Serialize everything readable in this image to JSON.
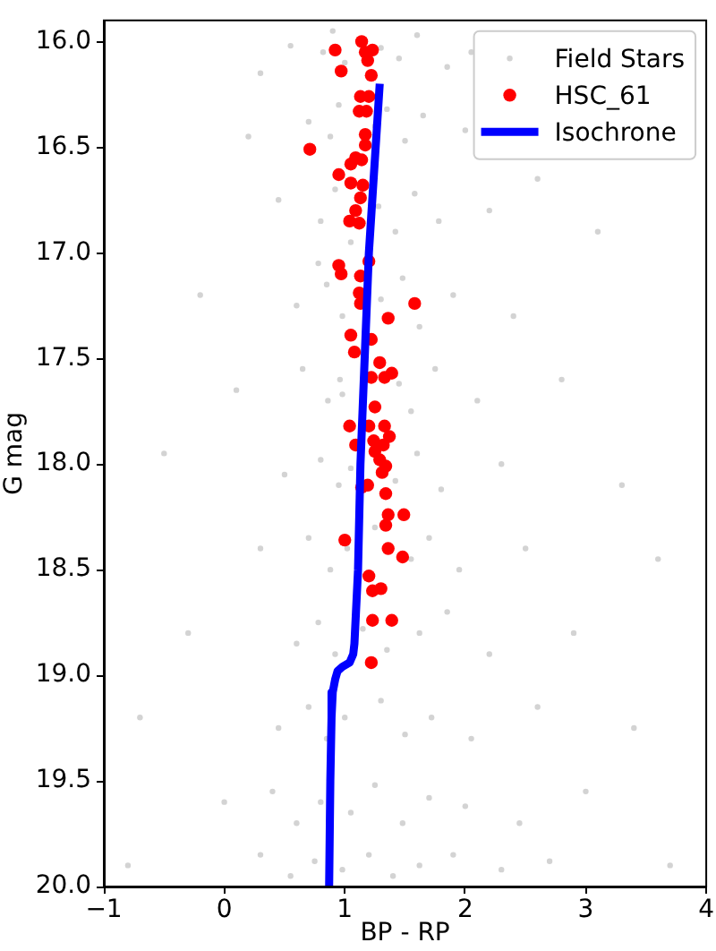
{
  "chart_data": {
    "type": "scatter",
    "xlabel": "BP - RP",
    "ylabel": "G mag",
    "xlim": [
      -1,
      4
    ],
    "ylim": [
      20.0,
      15.9
    ],
    "xticks": [
      {
        "value": -1,
        "label": "−1"
      },
      0,
      1,
      2,
      3,
      4
    ],
    "yticks": [
      {
        "value": 16,
        "label": "16.0"
      },
      16.5,
      {
        "value": 17,
        "label": "17.0"
      },
      17.5,
      {
        "value": 18,
        "label": "18.0"
      },
      18.5,
      {
        "value": 19,
        "label": "19.0"
      },
      19.5,
      {
        "value": 20,
        "label": "20.0"
      }
    ],
    "grid": false,
    "legend": "top right",
    "marker": "circle",
    "series": [
      {
        "name": "Field Stars",
        "color": "#d3d3d3",
        "x": [
          0.55,
          0.82,
          0.9,
          1.0,
          1.3,
          1.45,
          1.6,
          1.85,
          2.05,
          0.3,
          0.7,
          0.88,
          0.95,
          1.25,
          1.35,
          1.5,
          1.65,
          2.0,
          2.6,
          0.2,
          0.45,
          0.8,
          0.92,
          1.05,
          1.28,
          1.42,
          1.58,
          1.78,
          2.2,
          3.1,
          -0.2,
          0.6,
          0.85,
          0.98,
          1.3,
          1.48,
          1.62,
          1.9,
          2.4,
          0.78,
          0.1,
          0.65,
          0.86,
          0.96,
          0.98,
          1.45,
          1.55,
          1.75,
          2.1,
          2.8,
          -0.5,
          0.5,
          0.8,
          0.95,
          1.05,
          1.42,
          1.6,
          1.8,
          2.3,
          3.3,
          0.3,
          0.7,
          0.88,
          1.02,
          1.25,
          1.55,
          1.7,
          1.95,
          2.5,
          3.6,
          -0.3,
          0.6,
          0.78,
          0.92,
          1.15,
          1.35,
          1.62,
          1.85,
          2.2,
          2.9,
          -0.7,
          0.45,
          0.7,
          0.85,
          1.0,
          1.3,
          1.5,
          1.72,
          2.05,
          2.6,
          3.4,
          0.0,
          0.4,
          0.6,
          0.8,
          1.05,
          1.25,
          1.48,
          1.7,
          2.0,
          2.45,
          3.0,
          -0.8,
          0.3,
          0.55,
          0.75,
          0.98,
          1.2,
          1.4,
          1.62,
          1.9,
          2.3,
          2.7,
          3.7
        ],
        "values": [
          16.02,
          16.05,
          15.95,
          16.1,
          16.03,
          16.08,
          15.97,
          16.12,
          16.05,
          16.15,
          16.38,
          16.45,
          16.3,
          16.4,
          16.32,
          16.47,
          16.35,
          16.42,
          16.65,
          16.45,
          16.75,
          16.85,
          16.7,
          16.95,
          16.78,
          16.9,
          16.72,
          16.85,
          16.8,
          16.9,
          17.2,
          17.25,
          17.15,
          17.3,
          17.22,
          17.12,
          17.35,
          17.2,
          17.3,
          17.05,
          17.65,
          17.55,
          17.7,
          17.6,
          17.67,
          17.62,
          17.75,
          17.55,
          17.7,
          17.6,
          17.95,
          18.05,
          17.98,
          18.1,
          18.02,
          18.08,
          17.95,
          18.12,
          18.0,
          18.1,
          18.4,
          18.35,
          18.5,
          18.4,
          18.3,
          18.45,
          18.35,
          18.5,
          18.4,
          18.45,
          18.8,
          18.85,
          18.75,
          18.9,
          18.78,
          18.88,
          18.8,
          18.7,
          18.9,
          18.8,
          19.2,
          19.25,
          19.15,
          19.3,
          19.2,
          19.12,
          19.28,
          19.2,
          19.3,
          19.15,
          19.25,
          19.6,
          19.55,
          19.7,
          19.6,
          19.65,
          19.52,
          19.7,
          19.58,
          19.62,
          19.7,
          19.55,
          19.9,
          19.85,
          19.95,
          19.88,
          19.92,
          19.85,
          19.95,
          19.9,
          19.85,
          19.92,
          19.88,
          19.9
        ]
      },
      {
        "name": "HSC_61",
        "color": "#ff0000",
        "x": [
          0.92,
          1.14,
          1.17,
          1.23,
          1.19,
          0.97,
          1.22,
          1.13,
          1.2,
          1.12,
          1.18,
          1.17,
          1.17,
          0.71,
          1.09,
          1.14,
          1.05,
          0.95,
          1.05,
          1.15,
          1.13,
          1.09,
          1.04,
          1.12,
          1.2,
          0.95,
          0.97,
          1.13,
          1.12,
          1.13,
          1.58,
          1.36,
          1.05,
          1.22,
          1.08,
          1.29,
          1.22,
          1.33,
          1.39,
          1.25,
          1.04,
          1.2,
          1.33,
          1.24,
          1.37,
          1.09,
          1.32,
          1.25,
          1.29,
          1.34,
          1.31,
          1.19,
          1.14,
          1.34,
          1.36,
          1.49,
          1.34,
          1.0,
          1.36,
          1.48,
          1.2,
          1.23,
          1.3,
          1.23,
          1.39,
          1.22
        ],
        "values": [
          16.04,
          16.0,
          16.05,
          16.04,
          16.09,
          16.14,
          16.16,
          16.26,
          16.26,
          16.33,
          16.33,
          16.44,
          16.49,
          16.51,
          16.55,
          16.56,
          16.58,
          16.63,
          16.67,
          16.68,
          16.74,
          16.8,
          16.85,
          16.86,
          17.04,
          17.06,
          17.1,
          17.11,
          17.19,
          17.24,
          17.24,
          17.31,
          17.39,
          17.41,
          17.47,
          17.52,
          17.59,
          17.59,
          17.57,
          17.73,
          17.82,
          17.82,
          17.82,
          17.89,
          17.87,
          17.91,
          17.91,
          17.94,
          17.98,
          18.01,
          18.04,
          18.1,
          18.11,
          18.14,
          18.24,
          18.24,
          18.29,
          18.36,
          18.4,
          18.44,
          18.53,
          18.6,
          18.59,
          18.74,
          18.74,
          18.94
        ]
      },
      {
        "name": "Isochrone",
        "type": "line",
        "color": "#0000ff",
        "marker": "none",
        "x": [
          1.29,
          1.2,
          1.13,
          1.11,
          1.08,
          1.07,
          1.04,
          0.98,
          0.94,
          0.92,
          0.9,
          0.89,
          0.88,
          0.87
        ],
        "values": [
          16.2,
          17.0,
          18.0,
          18.5,
          18.85,
          18.9,
          18.94,
          18.96,
          18.98,
          19.02,
          19.08,
          19.2,
          19.5,
          20.0
        ]
      }
    ]
  }
}
